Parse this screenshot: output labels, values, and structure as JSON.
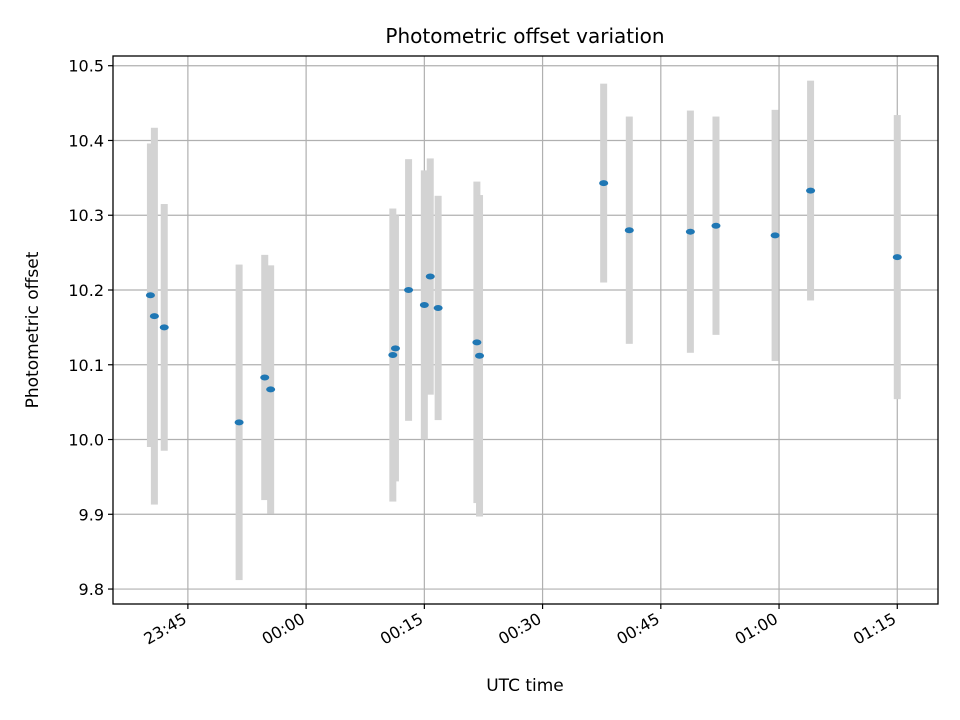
{
  "chart_data": {
    "type": "scatter",
    "title": "Photometric offset variation",
    "xlabel": "UTC time",
    "ylabel": "Photometric offset",
    "x_is_time": true,
    "x_ticks": [
      "23:45",
      "00:00",
      "00:15",
      "00:30",
      "00:45",
      "01:00",
      "01:15"
    ],
    "y_ticks": [
      "9.8",
      "9.9",
      "10.0",
      "10.1",
      "10.2",
      "10.3",
      "10.4",
      "10.5"
    ],
    "ylim": [
      9.78,
      10.513
    ],
    "xlim": [
      "23:35:30",
      "01:20:10"
    ],
    "grid": true,
    "marker_color": "#1f77b4",
    "errorbar_color": "#d3d3d3",
    "points": [
      {
        "x": "23:40:15",
        "y": 10.193,
        "err": 0.203
      },
      {
        "x": "23:40:45",
        "y": 10.165,
        "err": 0.252
      },
      {
        "x": "23:42:00",
        "y": 10.15,
        "err": 0.165
      },
      {
        "x": "23:51:30",
        "y": 10.023,
        "err": 0.211
      },
      {
        "x": "23:54:45",
        "y": 10.083,
        "err": 0.164
      },
      {
        "x": "23:55:30",
        "y": 10.067,
        "err": 0.166
      },
      {
        "x": "00:11:00",
        "y": 10.113,
        "err": 0.196
      },
      {
        "x": "00:11:20",
        "y": 10.122,
        "err": 0.178
      },
      {
        "x": "00:13:00",
        "y": 10.2,
        "err": 0.175
      },
      {
        "x": "00:15:00",
        "y": 10.18,
        "err": 0.18
      },
      {
        "x": "00:15:45",
        "y": 10.218,
        "err": 0.158
      },
      {
        "x": "00:16:45",
        "y": 10.176,
        "err": 0.15
      },
      {
        "x": "00:21:40",
        "y": 10.13,
        "err": 0.215
      },
      {
        "x": "00:22:00",
        "y": 10.112,
        "err": 0.215
      },
      {
        "x": "00:37:45",
        "y": 10.343,
        "err": 0.133
      },
      {
        "x": "00:41:00",
        "y": 10.28,
        "err": 0.152
      },
      {
        "x": "00:48:45",
        "y": 10.278,
        "err": 0.162
      },
      {
        "x": "00:52:00",
        "y": 10.286,
        "err": 0.146
      },
      {
        "x": "00:59:30",
        "y": 10.273,
        "err": 0.168
      },
      {
        "x": "01:04:00",
        "y": 10.333,
        "err": 0.147
      },
      {
        "x": "01:15:00",
        "y": 10.244,
        "err": 0.19
      }
    ]
  }
}
